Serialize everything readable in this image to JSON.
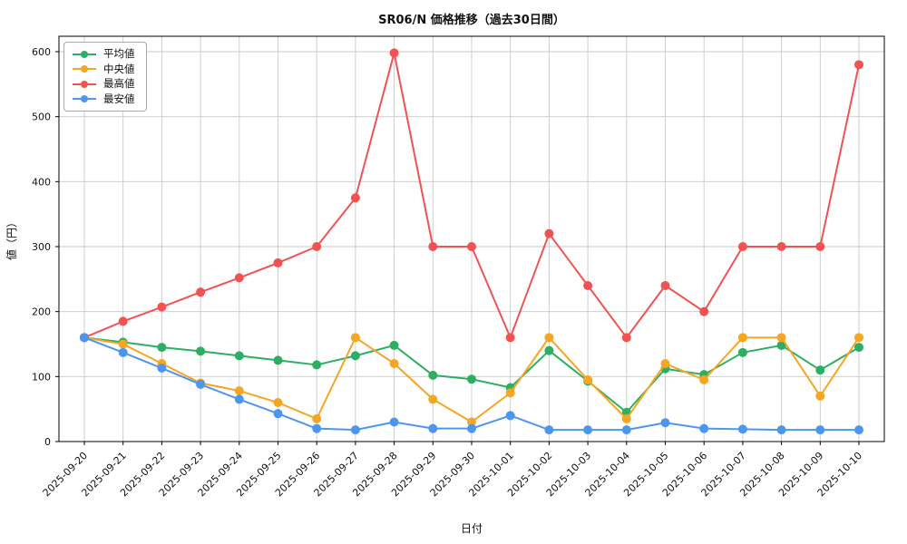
{
  "figure": {
    "background": "#ffffff",
    "grid_color": "#c9c9c9",
    "spine_color": "#000000"
  },
  "chart_data": {
    "type": "line",
    "title": "SR06/N 価格推移（過去30日間）",
    "xlabel": "日付",
    "ylabel": "値（円）",
    "ylim": [
      0,
      600
    ],
    "yticks": [
      0,
      100,
      200,
      300,
      400,
      500,
      600
    ],
    "grid": true,
    "legend_position": "upper-left",
    "marker": "circle",
    "categories": [
      "2025-09-20",
      "2025-09-21",
      "2025-09-22",
      "2025-09-23",
      "2025-09-24",
      "2025-09-25",
      "2025-09-26",
      "2025-09-27",
      "2025-09-28",
      "2025-09-29",
      "2025-09-30",
      "2025-10-01",
      "2025-10-02",
      "2025-10-03",
      "2025-10-04",
      "2025-10-05",
      "2025-10-06",
      "2025-10-07",
      "2025-10-08",
      "2025-10-09",
      "2025-10-10"
    ],
    "series": [
      {
        "name": "平均値",
        "color": "#2daf63",
        "values": [
          160,
          153,
          145,
          139,
          132,
          125,
          118,
          132,
          148,
          102,
          96,
          83,
          140,
          93,
          45,
          112,
          103,
          137,
          148,
          110,
          145
        ]
      },
      {
        "name": "中央値",
        "color": "#f5a623",
        "values": [
          160,
          150,
          120,
          90,
          78,
          60,
          35,
          160,
          120,
          65,
          30,
          75,
          160,
          95,
          35,
          120,
          95,
          160,
          160,
          70,
          160
        ]
      },
      {
        "name": "最高値",
        "color": "#f25252",
        "values": [
          160,
          185,
          207,
          230,
          252,
          275,
          300,
          375,
          598,
          300,
          300,
          160,
          320,
          240,
          160,
          240,
          200,
          300,
          300,
          300,
          580
        ]
      },
      {
        "name": "最安値",
        "color": "#4d96f0",
        "values": [
          160,
          137,
          113,
          88,
          65,
          43,
          20,
          18,
          30,
          20,
          20,
          40,
          18,
          18,
          18,
          29,
          20,
          19,
          18,
          18,
          18
        ]
      }
    ]
  }
}
